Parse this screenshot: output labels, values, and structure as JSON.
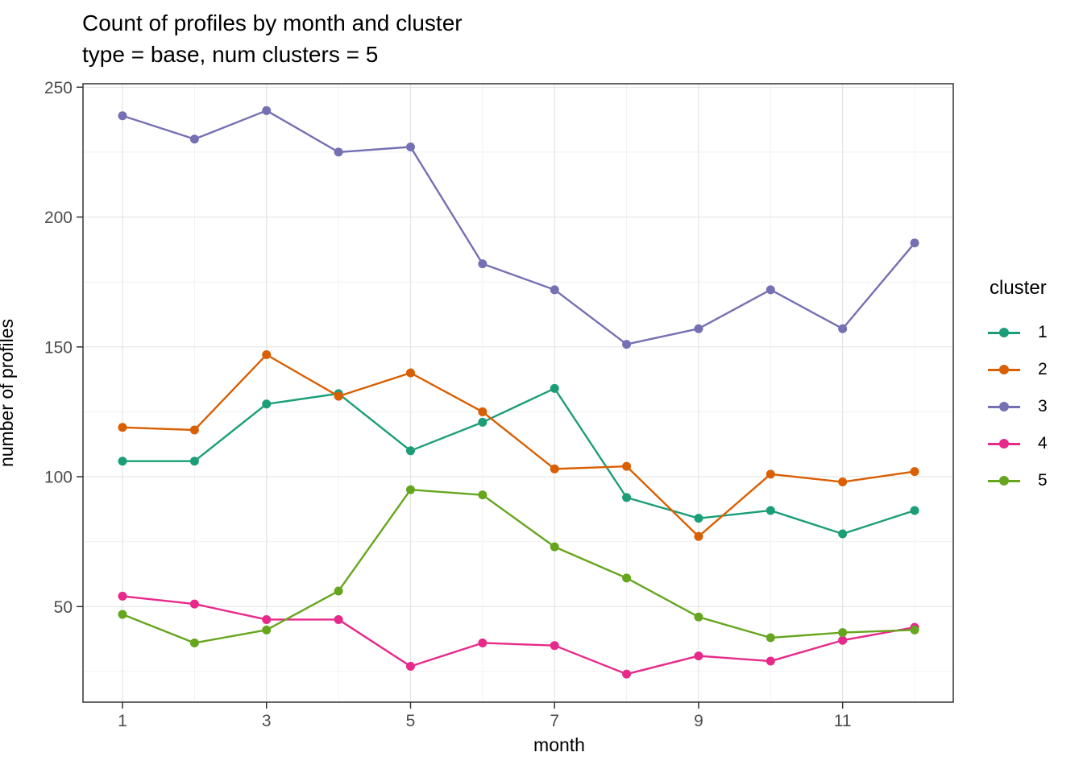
{
  "title": "Count of profiles by month and cluster",
  "subtitle": "type = base, num clusters = 5",
  "chart_data": {
    "type": "line",
    "title": "Count of profiles by month and cluster",
    "subtitle": "type = base, num clusters = 5",
    "xlabel": "month",
    "ylabel": "number of profiles",
    "legend_title": "cluster",
    "legend_position": "right",
    "grid": "on",
    "x": [
      1,
      2,
      3,
      4,
      5,
      6,
      7,
      8,
      9,
      10,
      11,
      12
    ],
    "x_ticks": [
      1,
      3,
      5,
      7,
      9,
      11
    ],
    "x_minor_ticks": [
      2,
      4,
      6,
      8,
      10,
      12
    ],
    "y_ticks": [
      50,
      100,
      150,
      200,
      250
    ],
    "y_minor_ticks": [
      25,
      75,
      125,
      175,
      225
    ],
    "xlim": [
      0.4516,
      12.5366
    ],
    "ylim": [
      13.2,
      251.33
    ],
    "series": [
      {
        "name": "1",
        "color": "#1B9E77",
        "values": [
          106,
          106,
          128,
          132,
          110,
          121,
          134,
          92,
          84,
          87,
          78,
          87
        ]
      },
      {
        "name": "2",
        "color": "#D95F02",
        "values": [
          119,
          118,
          147,
          131,
          140,
          125,
          103,
          104,
          77,
          101,
          98,
          102
        ]
      },
      {
        "name": "3",
        "color": "#7570B3",
        "values": [
          239,
          230,
          241,
          225,
          227,
          182,
          172,
          151,
          157,
          172,
          157,
          190
        ]
      },
      {
        "name": "4",
        "color": "#E7298A",
        "values": [
          54,
          51,
          45,
          45,
          27,
          36,
          35,
          24,
          31,
          29,
          37,
          42
        ]
      },
      {
        "name": "5",
        "color": "#66A61E",
        "values": [
          47,
          36,
          41,
          56,
          95,
          93,
          73,
          61,
          46,
          38,
          40,
          41
        ]
      }
    ],
    "panel_border_color": "#333333",
    "major_grid_color": "#e4e4e4",
    "minor_grid_color": "#efefef",
    "tick_color": "#333333",
    "tick_label_color": "#4d4d4d"
  }
}
